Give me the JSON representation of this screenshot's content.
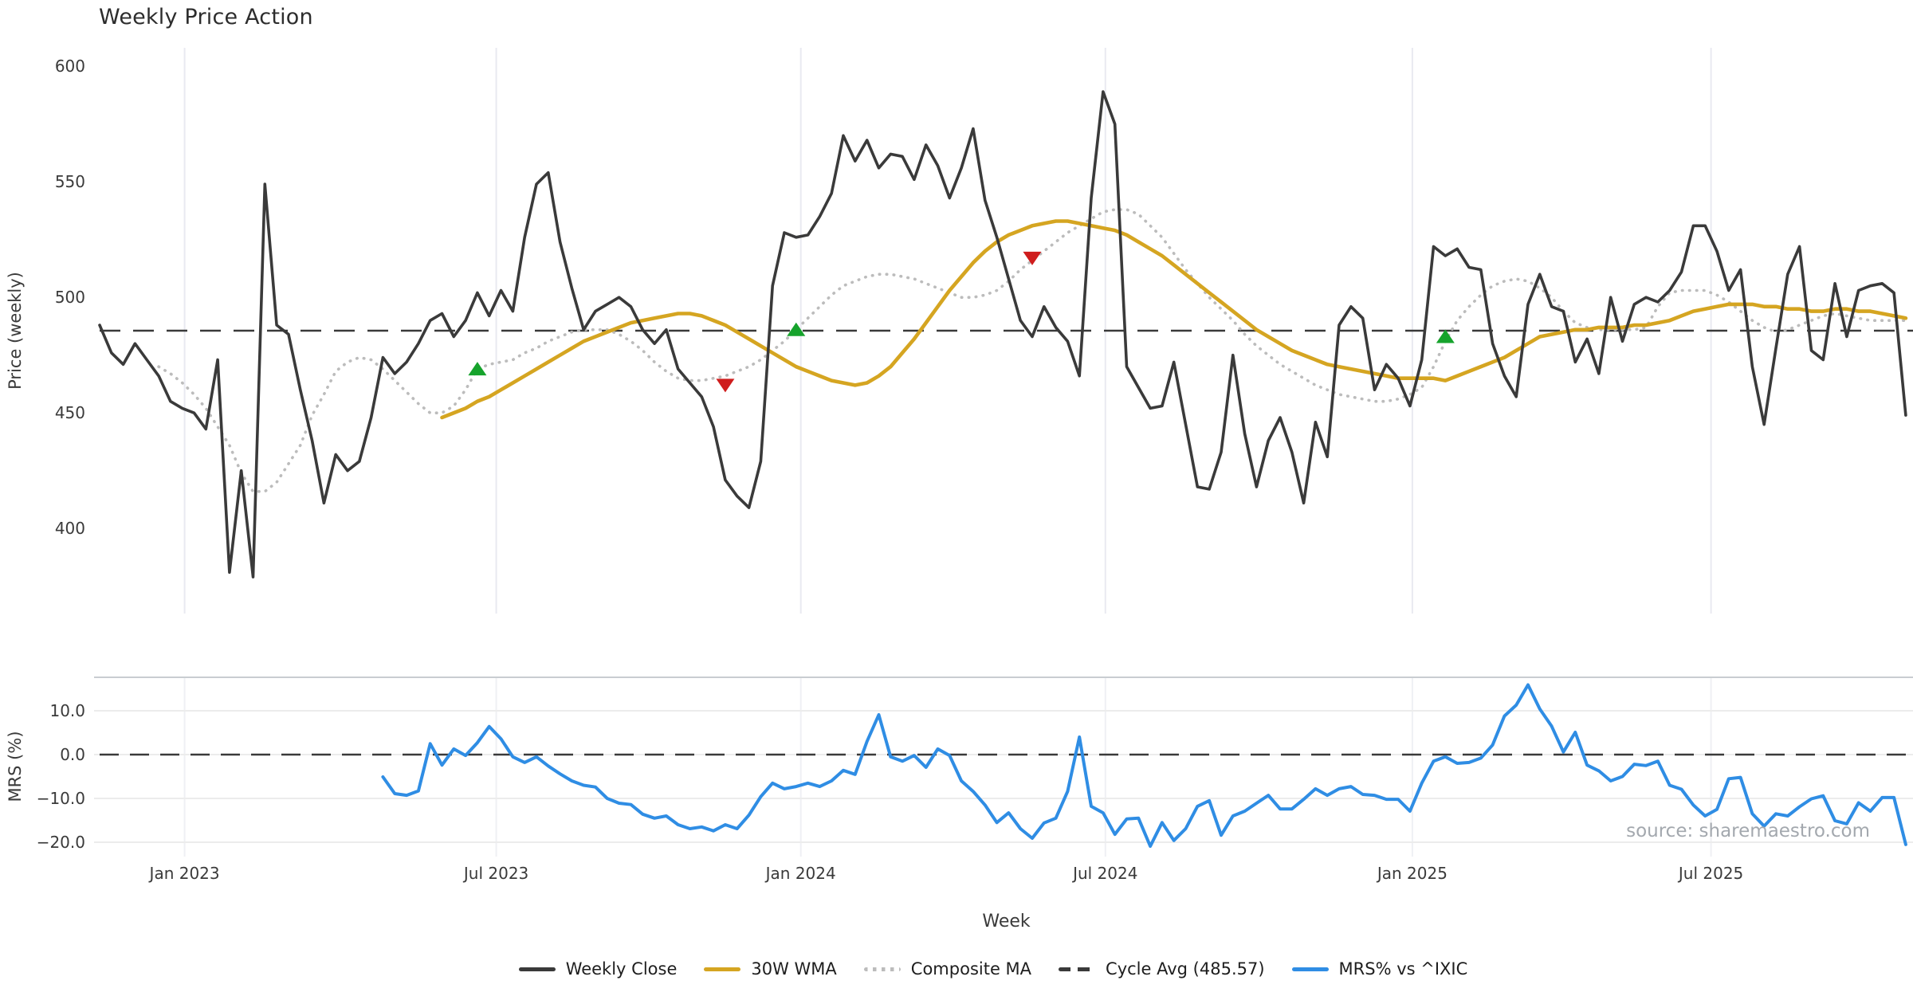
{
  "title": "Weekly Price Action",
  "source_note": "source: sharemaestro.com",
  "colors": {
    "close": "#3a3a3a",
    "wma": "#d5a521",
    "composite": "#bcbcbc",
    "cycle_avg": "#3a3a3a",
    "mrs": "#2f8de4",
    "buy": "#16a32c",
    "sell": "#cf1d1d",
    "grid_vertical": "#e9eaf1",
    "grid_horizontal": "#ececec",
    "panel_border": "#c9cdd1",
    "tick_text": "#3a3a3a",
    "axis_label_text": "#3a3a3a"
  },
  "legend": {
    "items": [
      {
        "label": "Weekly Close",
        "color": "#3a3a3a",
        "style": "solid"
      },
      {
        "label": "30W WMA",
        "color": "#d5a521",
        "style": "solid"
      },
      {
        "label": "Composite MA",
        "color": "#bcbcbc",
        "style": "dotted"
      },
      {
        "label": "Cycle Avg (485.57)",
        "color": "#3a3a3a",
        "style": "dashed"
      },
      {
        "label": "MRS% vs ^IXIC",
        "color": "#2f8de4",
        "style": "solid"
      }
    ]
  },
  "chart_data": {
    "type": "line",
    "title": "Weekly Price Action",
    "xlabel": "Week",
    "x_unit": "week_index",
    "x_total_weeks": 154,
    "xticks": [
      {
        "week": 7.2,
        "label": "Jan 2023"
      },
      {
        "week": 33.6,
        "label": "Jul 2023"
      },
      {
        "week": 59.4,
        "label": "Jan 2024"
      },
      {
        "week": 85.2,
        "label": "Jul 2024"
      },
      {
        "week": 111.2,
        "label": "Jan 2025"
      },
      {
        "week": 136.5,
        "label": "Jul 2025"
      }
    ],
    "panels": [
      {
        "name": "price",
        "ylabel": "Price (weekly)",
        "yticks": [
          400,
          450,
          500,
          550,
          600
        ],
        "ylim": [
          363,
          608
        ],
        "grid": "vertical",
        "cycle_avg": 485.57,
        "series": [
          {
            "name": "Weekly Close",
            "start_week": 0,
            "values": [
              488,
              476,
              471,
              480,
              473,
              466,
              455,
              452,
              450,
              443,
              473,
              381,
              425,
              379,
              549,
              488,
              484,
              460,
              438,
              411,
              432,
              425,
              429,
              448,
              474,
              467,
              472,
              480,
              490,
              493,
              483,
              490,
              502,
              492,
              503,
              494,
              526,
              549,
              554,
              524,
              504,
              486,
              494,
              497,
              500,
              496,
              486,
              480,
              486,
              469,
              463,
              457,
              444,
              421,
              414,
              409,
              429,
              505,
              528,
              526,
              527,
              535,
              545,
              570,
              559,
              568,
              556,
              562,
              561,
              551,
              566,
              557,
              543,
              556,
              573,
              542,
              526,
              508,
              490,
              483,
              496,
              487,
              481,
              466,
              543,
              589,
              575,
              470,
              461,
              452,
              453,
              472,
              445,
              418,
              417,
              433,
              475,
              441,
              418,
              438,
              448,
              433,
              411,
              446,
              431,
              488,
              496,
              491,
              460,
              471,
              465,
              453,
              473,
              522,
              518,
              521,
              513,
              512,
              480,
              466,
              457,
              497,
              510,
              496,
              494,
              472,
              482,
              467,
              500,
              481,
              497,
              500,
              498,
              503,
              511,
              531,
              531,
              520,
              503,
              512,
              470,
              445,
              478,
              510,
              522,
              477,
              473,
              506,
              483,
              503,
              505,
              506,
              502,
              449
            ]
          },
          {
            "name": "30W WMA",
            "start_week": 29,
            "values": [
              448,
              450,
              452,
              455,
              457,
              460,
              463,
              466,
              469,
              472,
              475,
              478,
              481,
              483,
              485,
              487,
              489,
              490,
              491,
              492,
              493,
              493,
              492,
              490,
              488,
              485,
              482,
              479,
              476,
              473,
              470,
              468,
              466,
              464,
              463,
              462,
              463,
              466,
              470,
              476,
              482,
              489,
              496,
              503,
              509,
              515,
              520,
              524,
              527,
              529,
              531,
              532,
              533,
              533,
              532,
              531,
              530,
              529,
              527,
              524,
              521,
              518,
              514,
              510,
              506,
              502,
              498,
              494,
              490,
              486,
              483,
              480,
              477,
              475,
              473,
              471,
              470,
              469,
              468,
              467,
              466,
              465,
              465,
              465,
              465,
              464,
              466,
              468,
              470,
              472,
              474,
              477,
              480,
              483,
              484,
              485,
              486,
              486,
              487,
              487,
              487,
              488,
              488,
              489,
              490,
              492,
              494,
              495,
              496,
              497,
              497,
              497,
              496,
              496,
              495,
              495,
              494,
              494,
              495,
              495,
              494,
              494,
              493,
              492,
              491
            ]
          },
          {
            "name": "Composite MA",
            "start_week": 5,
            "values": [
              470,
              467,
              463,
              458,
              452,
              444,
              436,
              424,
              416,
              416,
              420,
              428,
              436,
              449,
              458,
              468,
              472,
              474,
              473,
              469,
              464,
              459,
              454,
              450,
              450,
              453,
              460,
              469,
              471,
              472,
              473,
              476,
              478,
              481,
              483,
              485,
              486,
              486,
              486,
              484,
              481,
              477,
              472,
              468,
              465,
              464,
              464,
              465,
              466,
              468,
              470,
              473,
              477,
              481,
              486,
              491,
              496,
              501,
              505,
              507,
              509,
              510,
              510,
              509,
              508,
              506,
              504,
              502,
              500,
              500,
              501,
              503,
              507,
              512,
              516,
              520,
              524,
              528,
              531,
              534,
              537,
              538,
              538,
              536,
              531,
              526,
              519,
              512,
              506,
              500,
              495,
              490,
              484,
              479,
              475,
              471,
              468,
              465,
              462,
              460,
              458,
              457,
              456,
              455,
              455,
              456,
              458,
              461,
              470,
              481,
              490,
              496,
              501,
              505,
              507,
              508,
              507,
              504,
              500,
              494,
              489,
              487,
              486,
              486,
              486,
              486,
              487,
              496,
              502,
              503,
              503,
              503,
              501,
              498,
              494,
              490,
              487,
              485,
              486,
              488,
              490,
              492,
              493,
              492,
              491,
              490,
              490,
              490,
              490
            ]
          }
        ],
        "buy_signals": [
          {
            "week": 32,
            "price": 469
          },
          {
            "week": 59,
            "price": 486
          },
          {
            "week": 114,
            "price": 483
          }
        ],
        "sell_signals": [
          {
            "week": 53,
            "price": 462
          },
          {
            "week": 79,
            "price": 517
          }
        ]
      },
      {
        "name": "mrs",
        "ylabel": "MRS (%)",
        "yticks": [
          -20,
          -10,
          0,
          10
        ],
        "ylim": [
          -23.3,
          17.6
        ],
        "grid": "both",
        "zero_line": 0,
        "series": [
          {
            "name": "MRS% vs ^IXIC",
            "start_week": 24,
            "values": [
              -5.1,
              -8.9,
              -9.3,
              -8.3,
              2.5,
              -2.4,
              1.3,
              -0.2,
              2.7,
              6.4,
              3.6,
              -0.5,
              -1.8,
              -0.5,
              -2.6,
              -4.4,
              -6.0,
              -7.0,
              -7.4,
              -10.0,
              -11.1,
              -11.4,
              -13.6,
              -14.5,
              -14.0,
              -16.0,
              -16.9,
              -16.5,
              -17.4,
              -16.0,
              -16.9,
              -13.8,
              -9.6,
              -6.5,
              -7.8,
              -7.3,
              -6.5,
              -7.3,
              -6.0,
              -3.6,
              -4.5,
              3.0,
              9.1,
              -0.5,
              -1.5,
              -0.2,
              -2.9,
              1.3,
              -0.2,
              -6.0,
              -8.4,
              -11.5,
              -15.5,
              -13.3,
              -16.9,
              -19.1,
              -15.6,
              -14.5,
              -8.4,
              4.0,
              -11.8,
              -13.3,
              -18.2,
              -14.7,
              -14.5,
              -20.9,
              -15.5,
              -19.6,
              -16.9,
              -11.8,
              -10.5,
              -18.4,
              -14.0,
              -12.9,
              -11.1,
              -9.3,
              -12.4,
              -12.4,
              -10.2,
              -7.8,
              -9.3,
              -7.8,
              -7.3,
              -9.1,
              -9.3,
              -10.2,
              -10.2,
              -12.9,
              -6.5,
              -1.5,
              -0.5,
              -2.0,
              -1.8,
              -0.8,
              2.2,
              8.8,
              11.3,
              15.9,
              10.4,
              6.5,
              0.6,
              5.1,
              -2.4,
              -3.7,
              -6.0,
              -5.0,
              -2.2,
              -2.5,
              -1.5,
              -7.0,
              -7.9,
              -11.5,
              -14.0,
              -12.5,
              -5.5,
              -5.2,
              -13.5,
              -16.3,
              -13.5,
              -14.0,
              -11.9,
              -10.1,
              -9.4,
              -15.1,
              -15.8,
              -11.0,
              -12.9,
              -9.8,
              -9.8,
              -20.5
            ]
          }
        ]
      }
    ]
  }
}
